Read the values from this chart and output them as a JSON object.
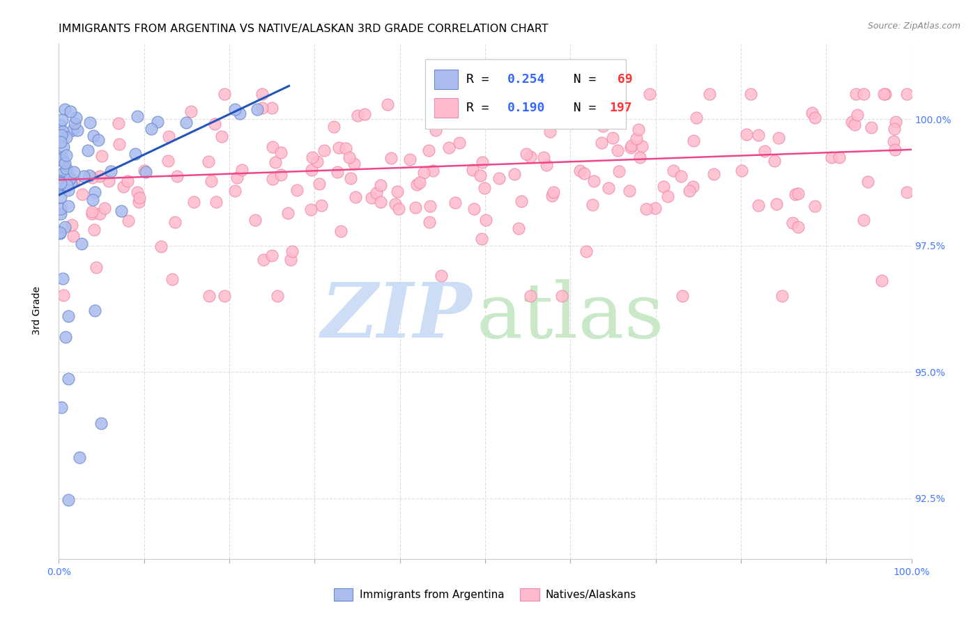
{
  "title": "IMMIGRANTS FROM ARGENTINA VS NATIVE/ALASKAN 3RD GRADE CORRELATION CHART",
  "source": "Source: ZipAtlas.com",
  "ylabel": "3rd Grade",
  "yticks": [
    92.5,
    95.0,
    97.5,
    100.0
  ],
  "ytick_labels": [
    "92.5%",
    "95.0%",
    "97.5%",
    "100.0%"
  ],
  "xlim": [
    0.0,
    1.0
  ],
  "ylim": [
    91.3,
    101.5
  ],
  "legend_r1": "R = 0.254",
  "legend_n1": "N =  69",
  "legend_r2": "R = 0.190",
  "legend_n2": "N = 197",
  "blue_scatter_color": "#AABBEE",
  "blue_edge_color": "#6688CC",
  "pink_scatter_color": "#FFBBCC",
  "pink_edge_color": "#EE88AA",
  "blue_line_color": "#2255BB",
  "pink_line_color": "#EE4488",
  "watermark_zip_color": "#CCDDF5",
  "watermark_atlas_color": "#C8E8C8",
  "bg_color": "#FFFFFF",
  "grid_color": "#DDDDDD",
  "title_fontsize": 11.5,
  "tick_color_right": "#4477FF",
  "tick_color_bottom": "#4477FF",
  "legend_value_color": "#3366FF",
  "legend_n_color": "#FF3333"
}
